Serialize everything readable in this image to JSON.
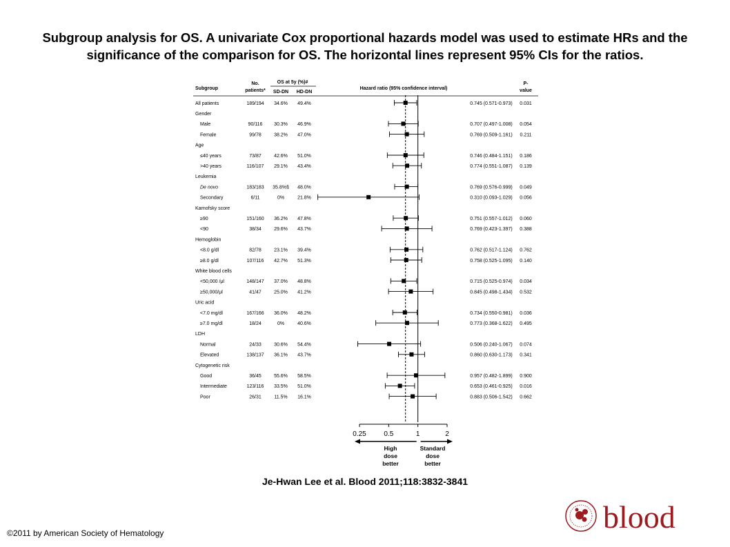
{
  "title": "Subgroup analysis for OS. A univariate Cox proportional hazards model was used to estimate HRs and the significance of the comparison for OS. The horizontal lines represent 95% CIs for the ratios.",
  "citation": "Je-Hwan Lee et al. Blood 2011;118:3832-3841",
  "copyright": "©2011 by American Society of Hematology",
  "logo_text": "blood",
  "colors": {
    "text": "#000000",
    "logo_red": "#9b1b21"
  },
  "chart_data": {
    "type": "forest",
    "x_scale": "log2",
    "xlim": [
      0.25,
      2
    ],
    "reference_line": 1,
    "pooled_line": 0.745,
    "grid": false,
    "header": {
      "subgroup": "Subgroup",
      "no_line1": "No.",
      "no_line2": "patients*",
      "os_label": "OS at 5y (%)#",
      "sd": "SD-DN",
      "hd": "HD-DN",
      "hr_label": "Hazard ratio (95% confidence interval)",
      "p_line1": "P-",
      "p_line2": "value"
    },
    "x_ticks": [
      "0.25",
      "0.5",
      "1",
      "2"
    ],
    "x_tick_values": [
      0.25,
      0.5,
      1,
      2
    ],
    "left_arrow_label": [
      "High",
      "dose",
      "better"
    ],
    "right_arrow_label": [
      "Standard",
      "dose",
      "better"
    ],
    "rows": [
      {
        "label": "All patients",
        "indent": false,
        "italic": false,
        "n": "189/194",
        "sd": "34.6%",
        "hd": "49.4%",
        "hr": 0.745,
        "lo": 0.571,
        "hi": 0.973,
        "ci": "0.745 (0.571-0.973)",
        "p": "0.031"
      },
      {
        "label": "Gender",
        "heading": true
      },
      {
        "label": "Male",
        "indent": true,
        "n": "90/116",
        "sd": "30.3%",
        "hd": "46.9%",
        "hr": 0.707,
        "lo": 0.497,
        "hi": 1.008,
        "ci": "0.707 (0.497-1.008)",
        "p": "0.054"
      },
      {
        "label": "Female",
        "indent": true,
        "n": "99/78",
        "sd": "38.2%",
        "hd": "47.0%",
        "hr": 0.769,
        "lo": 0.509,
        "hi": 1.161,
        "ci": "0.769 (0.509-1.161)",
        "p": "0.211"
      },
      {
        "label": "Age",
        "heading": true
      },
      {
        "label": "≤40 years",
        "indent": true,
        "n": "73/87",
        "sd": "42.6%",
        "hd": "51.0%",
        "hr": 0.746,
        "lo": 0.484,
        "hi": 1.151,
        "ci": "0.746 (0.484-1.151)",
        "p": "0.186"
      },
      {
        "label": ">40 years",
        "indent": true,
        "n": "116/107",
        "sd": "29.1%",
        "hd": "43.4%",
        "hr": 0.774,
        "lo": 0.551,
        "hi": 1.087,
        "ci": "0.774 (0.551-1.087)",
        "p": "0.139"
      },
      {
        "label": "Leukemia",
        "heading": true
      },
      {
        "label": "De novo",
        "indent": true,
        "italic": true,
        "n": "183/183",
        "sd": "35.8%§",
        "hd": "48.0%",
        "hr": 0.769,
        "lo": 0.576,
        "hi": 0.999,
        "ci": "0.769 (0.576-0.999)",
        "p": "0.049"
      },
      {
        "label": "Secondary",
        "indent": true,
        "n": "6/11",
        "sd": "0%",
        "hd": "21.8%",
        "hr": 0.31,
        "lo": 0.093,
        "hi": 1.029,
        "ci": "0.310 (0.093-1.029)",
        "p": "0.056"
      },
      {
        "label": "Karnofsky score",
        "heading": true
      },
      {
        "label": "≥90",
        "indent": true,
        "n": "151/160",
        "sd": "36.2%",
        "hd": "47.8%",
        "hr": 0.751,
        "lo": 0.557,
        "hi": 1.012,
        "ci": "0.751 (0.557-1.012)",
        "p": "0.060"
      },
      {
        "label": "<90",
        "indent": true,
        "n": "38/34",
        "sd": "29.6%",
        "hd": "43.7%",
        "hr": 0.769,
        "lo": 0.423,
        "hi": 1.397,
        "ci": "0.769 (0.423-1.397)",
        "p": "0.388"
      },
      {
        "label": "Hemoglobin",
        "heading": true
      },
      {
        "label": "<8.0 g/dl",
        "indent": true,
        "n": "82/78",
        "sd": "23.1%",
        "hd": "39.4%",
        "hr": 0.762,
        "lo": 0.517,
        "hi": 1.124,
        "ci": "0.762 (0.517-1.124)",
        "p": "0.762"
      },
      {
        "label": "≥8.0 g/dl",
        "indent": true,
        "n": "107/116",
        "sd": "42.7%",
        "hd": "51.3%",
        "hr": 0.758,
        "lo": 0.525,
        "hi": 1.095,
        "ci": "0.758 (0.525-1.095)",
        "p": "0.140"
      },
      {
        "label": "White blood cells",
        "heading": true
      },
      {
        "label": "<50,000 /μl",
        "indent": true,
        "n": "148/147",
        "sd": "37.0%",
        "hd": "48.8%",
        "hr": 0.715,
        "lo": 0.525,
        "hi": 0.974,
        "ci": "0.715 (0.525-0.974)",
        "p": "0.034"
      },
      {
        "label": "≥50,000/μl",
        "indent": true,
        "n": "41/47",
        "sd": "25.0%",
        "hd": "41.2%",
        "hr": 0.845,
        "lo": 0.498,
        "hi": 1.434,
        "ci": "0.845 (0.498-1.434)",
        "p": "0.532"
      },
      {
        "label": "Uric acid",
        "heading": true
      },
      {
        "label": "<7.0 mg/dl",
        "indent": true,
        "n": "167/166",
        "sd": "36.0%",
        "hd": "48.2%",
        "hr": 0.734,
        "lo": 0.55,
        "hi": 0.981,
        "ci": "0.734 (0.550-0.981)",
        "p": "0.036"
      },
      {
        "label": "≥7.0 mg/dl",
        "indent": true,
        "n": "18/24",
        "sd": "0%",
        "hd": "40.6%",
        "hr": 0.773,
        "lo": 0.368,
        "hi": 1.622,
        "ci": "0.773 (0.368-1.622)",
        "p": "0.495"
      },
      {
        "label": "LDH",
        "heading": true
      },
      {
        "label": "Normal",
        "indent": true,
        "n": "24/33",
        "sd": "30.6%",
        "hd": "54.4%",
        "hr": 0.506,
        "lo": 0.24,
        "hi": 1.067,
        "ci": "0.506 (0.240-1.067)",
        "p": "0.074"
      },
      {
        "label": "Elevated",
        "indent": true,
        "n": "138/137",
        "sd": "36.1%",
        "hd": "43.7%",
        "hr": 0.86,
        "lo": 0.63,
        "hi": 1.173,
        "ci": "0.860 (0.630-1.173)",
        "p": "0.341"
      },
      {
        "label": "Cytogenetic risk",
        "heading": true
      },
      {
        "label": "Good",
        "indent": true,
        "n": "36/45",
        "sd": "55.6%",
        "hd": "58.5%",
        "hr": 0.957,
        "lo": 0.482,
        "hi": 1.899,
        "ci": "0.957 (0.482-1.899)",
        "p": "0.900"
      },
      {
        "label": "Intermediate",
        "indent": true,
        "n": "123/116",
        "sd": "33.5%",
        "hd": "51.0%",
        "hr": 0.653,
        "lo": 0.461,
        "hi": 0.925,
        "ci": "0.653 (0.461-0.925)",
        "p": "0.016"
      },
      {
        "label": "Poor",
        "indent": true,
        "n": "26/31",
        "sd": "11.5%",
        "hd": "16.1%",
        "hr": 0.883,
        "lo": 0.506,
        "hi": 1.542,
        "ci": "0.883 (0.506-1.542)",
        "p": "0.662"
      }
    ]
  }
}
